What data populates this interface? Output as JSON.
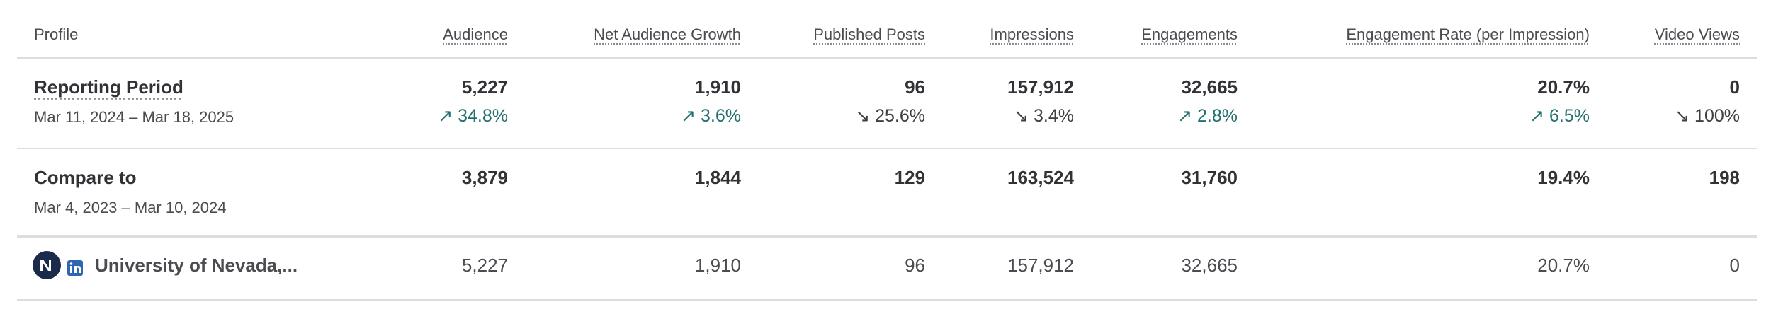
{
  "table": {
    "columns": [
      "Profile",
      "Audience",
      "Net Audience Growth",
      "Published Posts",
      "Impressions",
      "Engagements",
      "Engagement Rate (per Impression)",
      "Video Views"
    ],
    "rows": [
      {
        "title": "Reporting Period",
        "date": "Mar 11, 2024 – Mar 18, 2025",
        "values": [
          "5,227",
          "1,910",
          "96",
          "157,912",
          "32,665",
          "20.7%",
          "0"
        ],
        "changes": [
          {
            "text": "↗ 34.8%",
            "color": "#23716f"
          },
          {
            "text": "↗ 3.6%",
            "color": "#23716f"
          },
          {
            "text": "↘ 25.6%",
            "color": "#3d3f42"
          },
          {
            "text": "↘ 3.4%",
            "color": "#3d3f42"
          },
          {
            "text": "↗ 2.8%",
            "color": "#23716f"
          },
          {
            "text": "↗ 6.5%",
            "color": "#23716f"
          },
          {
            "text": "↘ 100%",
            "color": "#3d3f42"
          }
        ]
      },
      {
        "title": "Compare to",
        "date": "Mar 4, 2023 – Mar 10, 2024",
        "values": [
          "3,879",
          "1,844",
          "129",
          "163,524",
          "31,760",
          "19.4%",
          "198"
        ]
      },
      {
        "title": "University of Nevada,...",
        "values": [
          "5,227",
          "1,910",
          "96",
          "157,912",
          "32,665",
          "20.7%",
          "0"
        ]
      }
    ]
  }
}
